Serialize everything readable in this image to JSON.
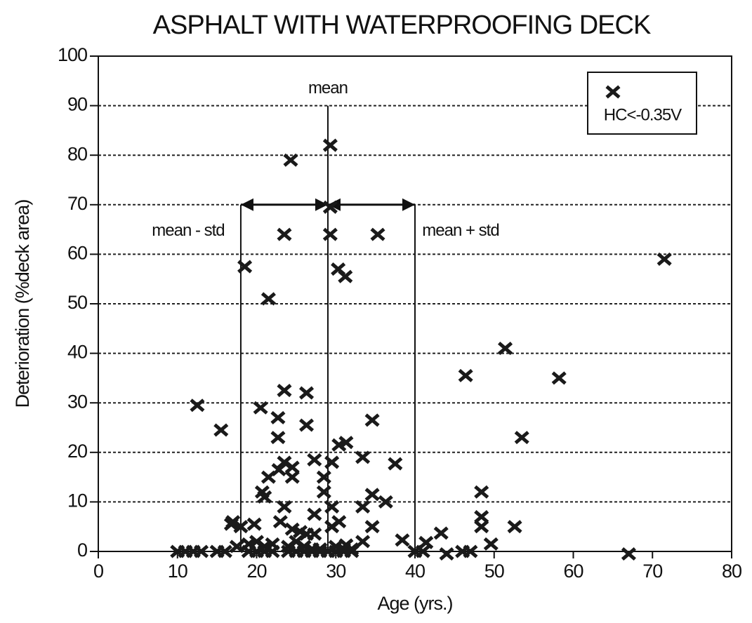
{
  "chart_data": {
    "type": "scatter",
    "title": "ASPHALT WITH WATERPROOFING DECK",
    "x_label": "Age (yrs.)",
    "y_label": "Deterioration (%deck area)",
    "xlim": [
      0,
      80
    ],
    "xticks": [
      0,
      10,
      20,
      30,
      40,
      50,
      60,
      70,
      80
    ],
    "ylim": [
      0,
      100
    ],
    "yticks": [
      0,
      10,
      20,
      30,
      40,
      50,
      60,
      70,
      80,
      90,
      100
    ],
    "grid": true,
    "legend": "upper right",
    "reference_lines": [
      {
        "label": "mean - std",
        "x": 18,
        "ymax": 70
      },
      {
        "label": "mean",
        "x": 29,
        "ymax": 90
      },
      {
        "label": "mean + std",
        "x": 40,
        "ymax": 70
      }
    ],
    "series": [
      {
        "name": "HC<-0.35V",
        "color": "#1a1a1a",
        "x": [
          10,
          11,
          12,
          13,
          15,
          16,
          19,
          20,
          21,
          22,
          24,
          25,
          26,
          27,
          28,
          29,
          30,
          31,
          32,
          40,
          41,
          44,
          46,
          47,
          67,
          12.5,
          15.5,
          16.8,
          17,
          17.5,
          18.5,
          18,
          19.7,
          20.7,
          21,
          20.5,
          21.5,
          21.5,
          22.8,
          22.7,
          22.7,
          23,
          23.5,
          23.5,
          23.5,
          23.5,
          24.3,
          24.5,
          24.5,
          24.5,
          25.5,
          26.3,
          26.3,
          26.3,
          27.3,
          27.3,
          27.3,
          28.5,
          28.5,
          29.3,
          29.3,
          29.3,
          29.5,
          29.5,
          29.5,
          30.3,
          30.4,
          30.4,
          31.2,
          31.3,
          31.3,
          33.4,
          33.4,
          33.4,
          34.6,
          34.6,
          34.6,
          35.3,
          36.3,
          37.5,
          38.4,
          41.4,
          43.3,
          46.4,
          48.4,
          48.4,
          48.4,
          49.6,
          51.4,
          52.6,
          53.5,
          58.2,
          71.5,
          19,
          20,
          21,
          22,
          24,
          25,
          26,
          27,
          28,
          31,
          32,
          30
        ],
        "values": [
          0,
          0,
          0,
          0,
          0,
          0,
          0,
          0,
          0,
          0,
          0,
          0,
          0,
          0,
          0,
          0,
          0,
          0,
          0,
          0,
          0,
          -0.5,
          0,
          0,
          -0.5,
          29.5,
          24.5,
          5.5,
          6,
          1,
          57.5,
          5,
          5.5,
          12,
          11,
          29,
          51,
          15,
          16.5,
          27,
          23,
          6,
          64,
          32.5,
          9,
          18,
          79,
          17,
          15,
          4.5,
          4,
          32,
          25.5,
          3.5,
          7.5,
          18.5,
          3.5,
          15,
          12,
          82,
          69.5,
          64,
          18,
          9,
          5,
          57,
          6,
          21.5,
          55.5,
          22,
          1.3,
          19,
          9,
          2,
          26.5,
          11.5,
          5,
          64,
          10,
          17.7,
          2.3,
          1.8,
          3.7,
          35.5,
          12,
          7,
          5,
          1.5,
          41,
          5,
          23,
          35,
          59,
          1.5,
          2,
          1,
          1.5,
          1,
          2,
          1,
          0.5,
          0.5,
          0.5,
          0.5,
          1
        ]
      }
    ]
  }
}
